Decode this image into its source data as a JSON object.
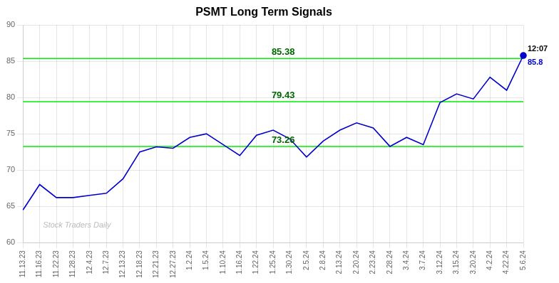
{
  "chart_data": {
    "type": "line",
    "title": "PSMT Long Term Signals",
    "categories": [
      "11.13.23",
      "11.16.23",
      "11.22.23",
      "11.28.23",
      "12.4.23",
      "12.7.23",
      "12.13.23",
      "12.18.23",
      "12.21.23",
      "12.27.23",
      "1.2.24",
      "1.5.24",
      "1.10.24",
      "1.16.24",
      "1.22.24",
      "1.25.24",
      "1.30.24",
      "2.5.24",
      "2.8.24",
      "2.13.24",
      "2.20.24",
      "2.23.24",
      "2.28.24",
      "3.4.24",
      "3.7.24",
      "3.12.24",
      "3.15.24",
      "3.20.24",
      "4.2.24",
      "4.22.24",
      "5.6.24"
    ],
    "values": [
      64.5,
      68.0,
      66.2,
      66.2,
      66.5,
      66.8,
      68.8,
      72.5,
      73.2,
      73.0,
      74.5,
      75.0,
      73.5,
      72.0,
      74.8,
      75.5,
      74.3,
      71.8,
      74.0,
      75.5,
      76.5,
      75.8,
      73.26,
      74.5,
      73.5,
      79.3,
      80.5,
      79.8,
      82.8,
      81.0,
      85.8
    ],
    "color": "#0000cc",
    "ylim": [
      60,
      90
    ],
    "yticks": [
      60,
      65,
      70,
      75,
      80,
      85,
      90
    ],
    "grid": true,
    "hlines": {
      "values": [
        85.38,
        79.43,
        73.26
      ],
      "color": "#00ee00",
      "label_color": "#006600"
    },
    "annotations": {
      "last_time": "12:07",
      "last_price": "85.8",
      "watermark": "Stock Traders Daily",
      "watermark_color": "#bbbbbb"
    }
  }
}
